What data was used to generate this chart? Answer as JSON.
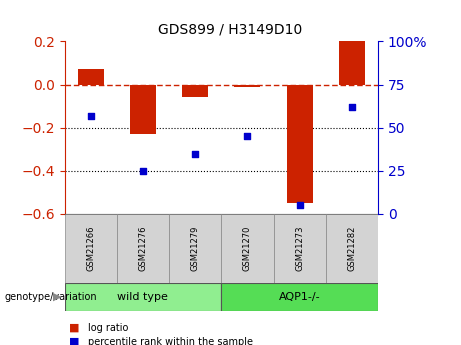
{
  "title": "GDS899 / H3149D10",
  "categories": [
    "GSM21266",
    "GSM21276",
    "GSM21279",
    "GSM21270",
    "GSM21273",
    "GSM21282"
  ],
  "log_ratio": [
    0.07,
    -0.23,
    -0.06,
    -0.01,
    -0.55,
    0.2
  ],
  "percentile_rank": [
    57,
    25,
    35,
    45,
    5,
    62
  ],
  "bar_color": "#cc2200",
  "dot_color": "#0000cc",
  "ylim_left": [
    -0.6,
    0.2
  ],
  "ylim_right": [
    0,
    100
  ],
  "hline_y": 0,
  "dotted_lines": [
    -0.2,
    -0.4
  ],
  "groups": [
    {
      "label": "wild type",
      "start": 0,
      "end": 2,
      "color": "#90ee90"
    },
    {
      "label": "AQP1-/-",
      "start": 3,
      "end": 5,
      "color": "#66cc66"
    }
  ],
  "genotype_label": "genotype/variation",
  "legend_items": [
    {
      "label": "log ratio",
      "color": "#cc2200"
    },
    {
      "label": "percentile rank within the sample",
      "color": "#0000cc"
    }
  ],
  "background_color": "#ffffff",
  "tick_label_color_left": "#cc2200",
  "tick_label_color_right": "#0000cc",
  "bar_color_light": "#d0d0d0",
  "group_color_light": "#90ee90",
  "group_color_dark": "#55cc55"
}
